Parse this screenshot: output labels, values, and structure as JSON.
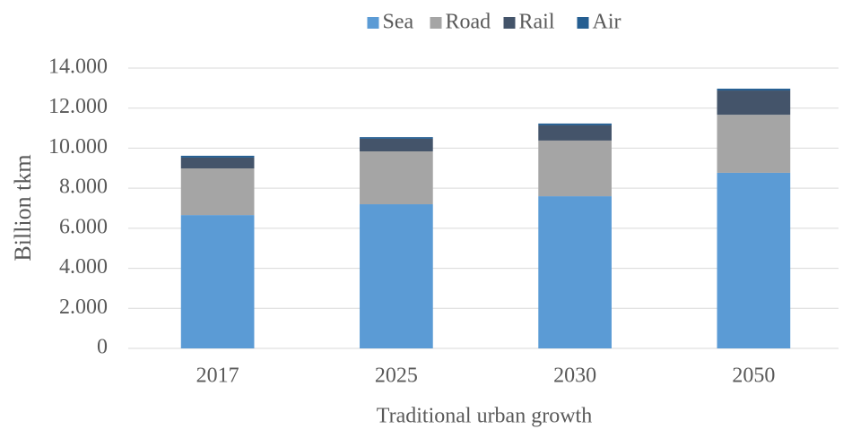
{
  "chart_data": {
    "type": "bar",
    "stacked": true,
    "x_label": "Traditional urban growth",
    "y_label": "Billion tkm",
    "categories": [
      "2017",
      "2025",
      "2030",
      "2050"
    ],
    "series": [
      {
        "name": "Sea",
        "color": "#5b9bd5",
        "values": [
          6660,
          7200,
          7600,
          8770
        ]
      },
      {
        "name": "Road",
        "color": "#a5a5a5",
        "values": [
          2330,
          2640,
          2780,
          2900
        ]
      },
      {
        "name": "Rail",
        "color": "#44546a",
        "values": [
          540,
          630,
          760,
          1210
        ]
      },
      {
        "name": "Air",
        "color": "#255e91",
        "values": [
          90,
          80,
          90,
          90
        ]
      }
    ],
    "ylim": [
      0,
      14000
    ],
    "yticks": [
      0,
      {
        "value": 2000,
        "label": "2.000"
      },
      {
        "value": 4000,
        "label": "4.000"
      },
      {
        "value": 6000,
        "label": "6.000"
      },
      {
        "value": 8000,
        "label": "8.000"
      },
      {
        "value": 10000,
        "label": "10.000"
      },
      {
        "value": 12000,
        "label": "12.000"
      },
      {
        "value": 14000,
        "label": "14.000"
      }
    ],
    "grid": true,
    "legend": "top"
  }
}
